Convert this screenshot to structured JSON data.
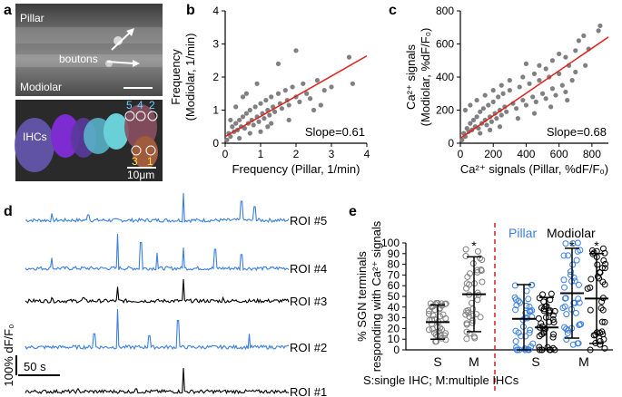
{
  "panels": {
    "a": {
      "label": "a",
      "top_labels": {
        "pillar": "Pillar",
        "boutons": "boutons",
        "modiolar": "Modiolar"
      },
      "bottom_labels": {
        "ihcs": "IHCs",
        "scale": "10μm"
      },
      "roi_numbers": {
        "pillar_side": [
          "5",
          "4",
          "2"
        ],
        "modiolar_side": [
          "3",
          "1"
        ]
      }
    },
    "b": {
      "label": "b"
    },
    "c": {
      "label": "c"
    },
    "d": {
      "label": "d"
    },
    "e": {
      "label": "e"
    }
  },
  "colors": {
    "pillar_blue": "#3b7fe0",
    "modiolar_black": "#000000",
    "scatter_gray": "#808080",
    "fit_red": "#e0201b",
    "dash_red": "#d81e1e"
  },
  "chart_data": [
    {
      "panel": "b",
      "type": "scatter",
      "xlabel": "Frequency (Pillar, 1/min)",
      "ylabel_lines": [
        "Frequency",
        "(Modiolar, 1/min)"
      ],
      "xlim": [
        0,
        4
      ],
      "ylim": [
        0,
        4
      ],
      "xticks": [
        "0",
        "1",
        "2",
        "3",
        "4"
      ],
      "yticks": [
        "0",
        "1",
        "2",
        "3",
        "4"
      ],
      "fit": {
        "slope": 0.61,
        "intercept": 0.2,
        "x_range": [
          0,
          4
        ]
      },
      "slope_label": "Slope=0.61",
      "points": [
        [
          0.05,
          0.1
        ],
        [
          0.1,
          0.3
        ],
        [
          0.15,
          0.2
        ],
        [
          0.2,
          0.5
        ],
        [
          0.25,
          0.35
        ],
        [
          0.3,
          0.6
        ],
        [
          0.35,
          0.4
        ],
        [
          0.4,
          0.7
        ],
        [
          0.45,
          0.5
        ],
        [
          0.5,
          0.8
        ],
        [
          0.55,
          0.45
        ],
        [
          0.6,
          0.9
        ],
        [
          0.65,
          0.6
        ],
        [
          0.7,
          1.0
        ],
        [
          0.75,
          0.7
        ],
        [
          0.8,
          0.55
        ],
        [
          0.85,
          1.1
        ],
        [
          0.9,
          0.8
        ],
        [
          0.95,
          0.65
        ],
        [
          1.0,
          1.2
        ],
        [
          1.05,
          0.9
        ],
        [
          1.1,
          0.75
        ],
        [
          1.15,
          1.3
        ],
        [
          1.2,
          1.0
        ],
        [
          1.25,
          0.85
        ],
        [
          1.3,
          1.4
        ],
        [
          1.35,
          1.1
        ],
        [
          1.4,
          0.95
        ],
        [
          1.5,
          1.5
        ],
        [
          1.55,
          1.2
        ],
        [
          1.6,
          1.05
        ],
        [
          1.7,
          1.6
        ],
        [
          1.75,
          1.3
        ],
        [
          1.8,
          1.15
        ],
        [
          1.9,
          1.7
        ],
        [
          2.0,
          1.4
        ],
        [
          2.1,
          1.25
        ],
        [
          2.2,
          1.8
        ],
        [
          2.3,
          1.5
        ],
        [
          2.4,
          1.35
        ],
        [
          2.6,
          1.9
        ],
        [
          2.8,
          1.6
        ],
        [
          3.0,
          1.7
        ],
        [
          3.5,
          2.6
        ],
        [
          2.0,
          2.8
        ],
        [
          1.5,
          2.4
        ],
        [
          0.9,
          1.8
        ],
        [
          0.5,
          1.4
        ],
        [
          0.3,
          1.1
        ],
        [
          0.7,
          0.3
        ],
        [
          1.2,
          0.5
        ],
        [
          1.8,
          0.7
        ],
        [
          2.5,
          1.0
        ],
        [
          0.15,
          0.7
        ],
        [
          0.6,
          1.5
        ],
        [
          1.0,
          0.35
        ],
        [
          3.6,
          1.8
        ],
        [
          2.7,
          1.15
        ],
        [
          0.4,
          0.15
        ],
        [
          1.3,
          0.6
        ]
      ]
    },
    {
      "panel": "c",
      "type": "scatter",
      "xlabel": "Ca²⁺ signals (Pillar, %dF/F₀)",
      "ylabel_lines": [
        "Ca²⁺ signals",
        "(Modiolar, %dF/F₀)"
      ],
      "xlim": [
        0,
        900
      ],
      "ylim": [
        0,
        800
      ],
      "xticks": [
        "0",
        "200",
        "400",
        "600",
        "800"
      ],
      "yticks": [
        "0",
        "200",
        "400",
        "600",
        "800"
      ],
      "fit": {
        "slope": 0.68,
        "intercept": 30,
        "x_range": [
          0,
          900
        ]
      },
      "slope_label": "Slope=0.68",
      "points": [
        [
          10,
          20
        ],
        [
          20,
          60
        ],
        [
          30,
          40
        ],
        [
          40,
          90
        ],
        [
          50,
          70
        ],
        [
          60,
          120
        ],
        [
          70,
          80
        ],
        [
          80,
          140
        ],
        [
          90,
          100
        ],
        [
          100,
          160
        ],
        [
          110,
          90
        ],
        [
          120,
          190
        ],
        [
          130,
          120
        ],
        [
          140,
          210
        ],
        [
          150,
          140
        ],
        [
          160,
          110
        ],
        [
          170,
          230
        ],
        [
          180,
          160
        ],
        [
          190,
          130
        ],
        [
          200,
          250
        ],
        [
          210,
          180
        ],
        [
          220,
          150
        ],
        [
          230,
          280
        ],
        [
          240,
          200
        ],
        [
          250,
          170
        ],
        [
          260,
          300
        ],
        [
          270,
          220
        ],
        [
          280,
          190
        ],
        [
          300,
          320
        ],
        [
          320,
          240
        ],
        [
          340,
          210
        ],
        [
          360,
          340
        ],
        [
          380,
          260
        ],
        [
          400,
          230
        ],
        [
          420,
          360
        ],
        [
          440,
          280
        ],
        [
          460,
          250
        ],
        [
          480,
          380
        ],
        [
          500,
          300
        ],
        [
          520,
          270
        ],
        [
          540,
          400
        ],
        [
          560,
          330
        ],
        [
          580,
          290
        ],
        [
          600,
          420
        ],
        [
          620,
          350
        ],
        [
          640,
          310
        ],
        [
          660,
          470
        ],
        [
          680,
          380
        ],
        [
          700,
          560
        ],
        [
          720,
          620
        ],
        [
          750,
          650
        ],
        [
          780,
          570
        ],
        [
          840,
          680
        ],
        [
          850,
          710
        ],
        [
          520,
          450
        ],
        [
          450,
          420
        ],
        [
          380,
          400
        ],
        [
          300,
          380
        ],
        [
          250,
          350
        ],
        [
          200,
          320
        ],
        [
          150,
          290
        ],
        [
          100,
          260
        ],
        [
          60,
          230
        ],
        [
          30,
          200
        ],
        [
          350,
          150
        ],
        [
          450,
          180
        ],
        [
          550,
          220
        ],
        [
          650,
          260
        ],
        [
          120,
          60
        ],
        [
          180,
          80
        ],
        [
          240,
          100
        ],
        [
          400,
          480
        ],
        [
          560,
          500
        ],
        [
          600,
          540
        ],
        [
          480,
          470
        ],
        [
          700,
          430
        ],
        [
          760,
          470
        ],
        [
          640,
          520
        ]
      ]
    },
    {
      "panel": "d",
      "type": "line",
      "ylabel": "100% dF/F₀",
      "scale_bar_label": "50 s",
      "series": [
        {
          "name": "ROI #5",
          "color": "pillar_blue",
          "spikes": [
            [
              0.1,
              0.25
            ],
            [
              0.24,
              0.2
            ],
            [
              0.6,
              1.0
            ],
            [
              0.82,
              0.7
            ],
            [
              0.87,
              0.5
            ]
          ]
        },
        {
          "name": "ROI #4",
          "color": "pillar_blue",
          "spikes": [
            [
              0.1,
              0.3
            ],
            [
              0.35,
              1.0
            ],
            [
              0.44,
              0.75
            ],
            [
              0.5,
              0.45
            ],
            [
              0.6,
              0.6
            ],
            [
              0.72,
              0.55
            ],
            [
              0.82,
              0.4
            ]
          ]
        },
        {
          "name": "ROI #3",
          "color": "modiolar_black",
          "spikes": [
            [
              0.35,
              0.65
            ],
            [
              0.6,
              1.0
            ],
            [
              0.1,
              0.15
            ],
            [
              0.22,
              0.15
            ],
            [
              0.75,
              0.15
            ]
          ]
        },
        {
          "name": "ROI #2",
          "color": "pillar_blue",
          "spikes": [
            [
              0.35,
              1.0
            ],
            [
              0.58,
              0.7
            ],
            [
              0.26,
              0.35
            ],
            [
              0.47,
              0.3
            ],
            [
              0.85,
              0.35
            ]
          ]
        },
        {
          "name": "ROI #1",
          "color": "modiolar_black",
          "spikes": [
            [
              0.6,
              1.0
            ],
            [
              0.2,
              0.12
            ],
            [
              0.42,
              0.12
            ]
          ]
        }
      ]
    },
    {
      "panel": "e",
      "type": "scatter",
      "legend": {
        "pillar": "Pillar",
        "modiolar": "Modiolar"
      },
      "ylabel_lines": [
        "% SGN terminals",
        "responding with Ca²⁺ signals"
      ],
      "ylim": [
        0,
        100
      ],
      "yticks": [
        "0",
        "10",
        "20",
        "30",
        "40",
        "50",
        "60",
        "70",
        "80",
        "90",
        "100"
      ],
      "xlabel": "S:single IHC; M:multiple IHCs",
      "groups": [
        {
          "label": "S",
          "color": "scatter_gray",
          "mean": 26,
          "sd": 16,
          "star": false
        },
        {
          "label": "M",
          "color": "scatter_gray",
          "mean": 52,
          "sd": 35,
          "star": true
        },
        {
          "label": "S",
          "color": "pillar_blue",
          "mean": 29,
          "sd": 32,
          "star": false
        },
        {
          "label": "S",
          "color": "modiolar_black",
          "mean": 21,
          "sd": 28,
          "star": false
        },
        {
          "label": "M",
          "color": "pillar_blue",
          "mean": 53,
          "sd": 42,
          "star": true
        },
        {
          "label": "M",
          "color": "modiolar_black",
          "mean": 48,
          "sd": 42,
          "star": true
        }
      ],
      "star_symbol": "*"
    }
  ]
}
